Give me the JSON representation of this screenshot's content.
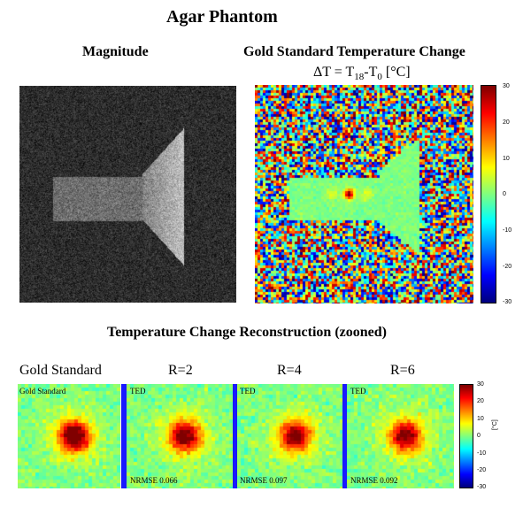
{
  "figure": {
    "title": "Agar Phantom",
    "magnitude_title": "Magnitude",
    "gold_title": "Gold Standard Temperature Change",
    "delta_prefix": "ΔT = T",
    "delta_sub1": "18",
    "delta_mid": "-T",
    "delta_sub2": "0",
    "delta_suffix": " [°C]",
    "recon_title": "Temperature Change Reconstruction (zooned)",
    "col_labels": [
      "Gold Standard",
      "R=2",
      "R=4",
      "R=6"
    ],
    "tiles": [
      {
        "tag": "Gold Standard",
        "nrmse": ""
      },
      {
        "tag": "TED",
        "nrmse": "NRMSE 0.066"
      },
      {
        "tag": "TED",
        "nrmse": "NRMSE 0.097"
      },
      {
        "tag": "TED",
        "nrmse": "NRMSE 0.092"
      }
    ],
    "colorbar_top": {
      "ticks": [
        "30",
        "20",
        "10",
        "0",
        "-10",
        "-20",
        "-30"
      ]
    },
    "colorbar_bottom": {
      "ticks": [
        "30",
        "20",
        "10",
        "0",
        "-10",
        "-20",
        "-30"
      ],
      "unit": "[°C]"
    },
    "colormap": "jet",
    "range": [
      -30,
      30
    ]
  }
}
